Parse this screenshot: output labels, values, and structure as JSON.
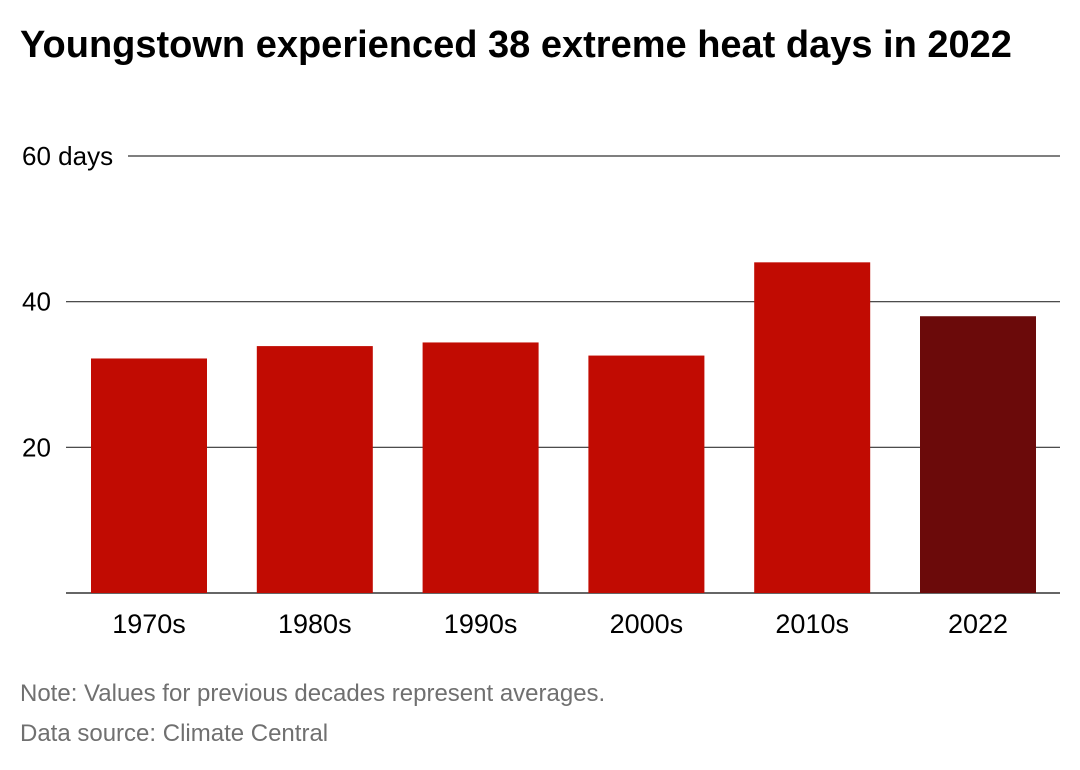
{
  "title": "Youngstown experienced 38 extreme heat days in 2022",
  "note": "Note: Values for previous decades represent averages.",
  "source": "Data source: Climate Central",
  "colors": {
    "bar": "#c10b02",
    "highlight": "#6b0a0a",
    "grid": "#333333",
    "axis_text": "#000000"
  },
  "chart_data": {
    "type": "bar",
    "categories": [
      "1970s",
      "1980s",
      "1990s",
      "2000s",
      "2010s",
      "2022"
    ],
    "values": [
      32.2,
      33.9,
      34.4,
      32.6,
      45.4,
      38
    ],
    "highlight_index": 5,
    "ylim": [
      0,
      60
    ],
    "yticks": [
      20,
      40,
      60
    ],
    "ytick_labels": [
      "20",
      "40",
      "60 days"
    ],
    "grid": true,
    "xlabel": "",
    "ylabel": ""
  }
}
